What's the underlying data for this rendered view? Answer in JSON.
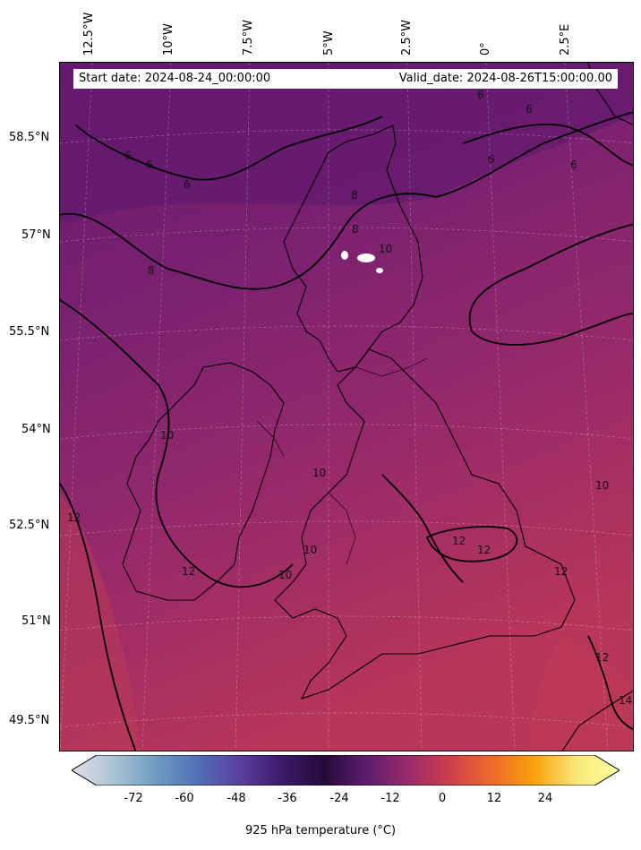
{
  "header": {
    "start_date": "Start date: 2024-08-24_00:00:00",
    "valid_date": "Valid_date: 2024-08-26T15:00:00.00"
  },
  "longitude_labels": [
    "12.5°W",
    "10°W",
    "7.5°W",
    "5°W",
    "2.5°W",
    "0°",
    "2.5°E"
  ],
  "latitude_labels": [
    "58.5°N",
    "57°N",
    "55.5°N",
    "54°N",
    "52.5°N",
    "51°N",
    "49.5°N"
  ],
  "contour_labels": [
    "6",
    "6",
    "6",
    "6",
    "6",
    "6",
    "6",
    "8",
    "8",
    "8",
    "10",
    "10",
    "10",
    "10",
    "10",
    "10",
    "12",
    "12",
    "12",
    "12",
    "12",
    "12",
    "14"
  ],
  "colorbar": {
    "ticks": [
      "-72",
      "-60",
      "-48",
      "-36",
      "-24",
      "-12",
      "0",
      "12",
      "24"
    ],
    "title": "925 hPa temperature (°C)",
    "colors": [
      "#e4dde6",
      "#a9c4d3",
      "#6f9cc1",
      "#5170b7",
      "#5b3f9e",
      "#3c1a6a",
      "#240b3a",
      "#5d1d6e",
      "#9a2a6a",
      "#d0404c",
      "#ef6a28",
      "#f9a30c",
      "#f8e97a",
      "#fcffa4"
    ]
  }
}
